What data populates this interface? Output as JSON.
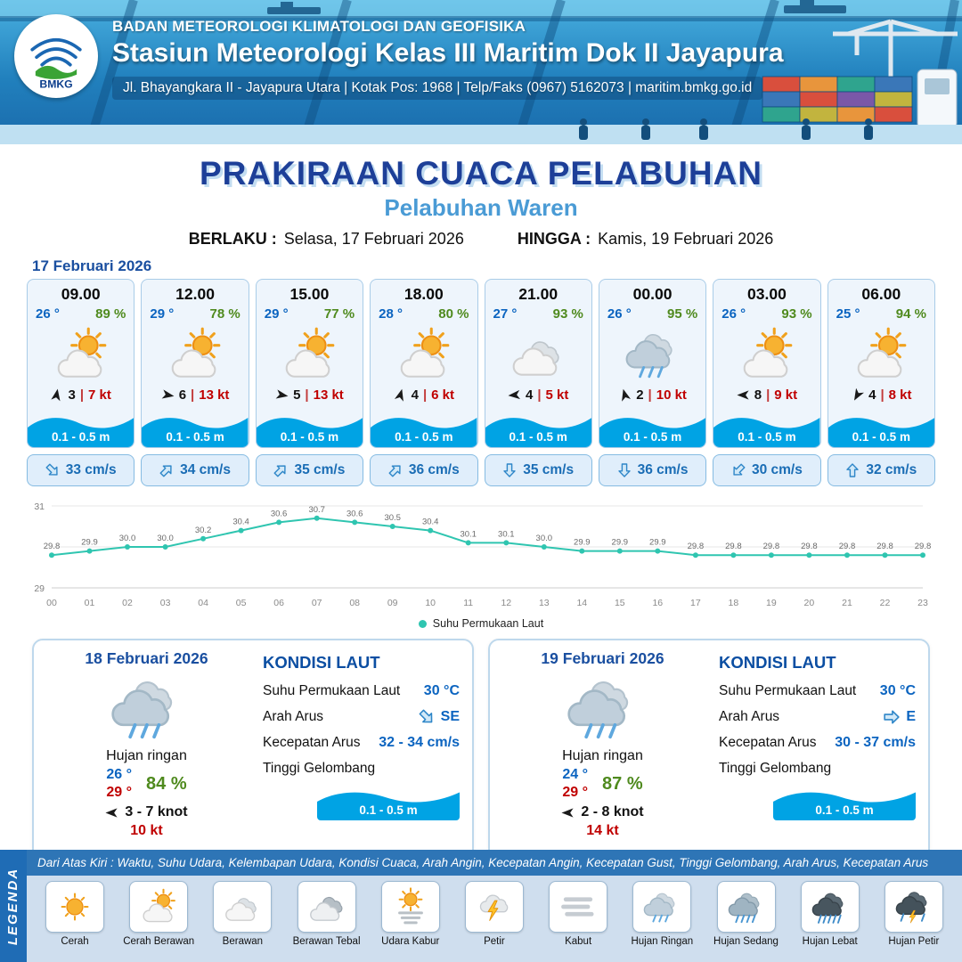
{
  "colors": {
    "header_blue": "#2180bd",
    "title_blue": "#1d3f98",
    "port_blue": "#4a9bd5",
    "temp_blue": "#0b64c0",
    "humidity_green": "#4f8a1e",
    "gust_red": "#c00000",
    "wave_blue": "#00a3e4",
    "sst_line_teal": "#2fc5b0",
    "legend_bar_blue": "#2e75b6"
  },
  "header": {
    "logo_text": "BMKG",
    "agency": "BADAN METEOROLOGI KLIMATOLOGI DAN GEOFISIKA",
    "station": "Stasiun Meteorologi Kelas III Maritim Dok II Jayapura",
    "address": "Jl. Bhayangkara II - Jayapura Utara | Kotak Pos: 1968 | Telp/Faks (0967) 5162073 | maritim.bmkg.go.id"
  },
  "title": {
    "main": "PRAKIRAAN CUACA PELABUHAN",
    "port": "Pelabuhan Waren",
    "valid_label": "BERLAKU :",
    "valid_value": "Selasa, 17 Februari 2026",
    "until_label": "HINGGA :",
    "until_value": "Kamis, 19 Februari 2026"
  },
  "forecast": {
    "date": "17 Februari 2026",
    "cards": [
      {
        "time": "09.00",
        "temp": "26 °",
        "humidity": "89 %",
        "icon": "cerah-berawan",
        "wind_dir_deg": 10,
        "wind_speed": "3",
        "gust": "7 kt",
        "wave": "0.1 - 0.5 m",
        "current_dir_deg": 135,
        "current_speed": "33 cm/s"
      },
      {
        "time": "12.00",
        "temp": "29 °",
        "humidity": "78 %",
        "icon": "cerah-berawan",
        "wind_dir_deg": 100,
        "wind_speed": "6",
        "gust": "13 kt",
        "wave": "0.1 - 0.5 m",
        "current_dir_deg": 45,
        "current_speed": "34 cm/s"
      },
      {
        "time": "15.00",
        "temp": "29 °",
        "humidity": "77 %",
        "icon": "cerah-berawan",
        "wind_dir_deg": 100,
        "wind_speed": "5",
        "gust": "13 kt",
        "wave": "0.1 - 0.5 m",
        "current_dir_deg": 45,
        "current_speed": "35 cm/s"
      },
      {
        "time": "18.00",
        "temp": "28 °",
        "humidity": "80 %",
        "icon": "cerah-berawan",
        "wind_dir_deg": 15,
        "wind_speed": "4",
        "gust": "6 kt",
        "wave": "0.1 - 0.5 m",
        "current_dir_deg": 45,
        "current_speed": "36 cm/s"
      },
      {
        "time": "21.00",
        "temp": "27 °",
        "humidity": "93 %",
        "icon": "berawan",
        "wind_dir_deg": 265,
        "wind_speed": "4",
        "gust": "5 kt",
        "wave": "0.1 - 0.5 m",
        "current_dir_deg": 180,
        "current_speed": "35 cm/s"
      },
      {
        "time": "00.00",
        "temp": "26 °",
        "humidity": "95 %",
        "icon": "hujan-ringan",
        "wind_dir_deg": 345,
        "wind_speed": "2",
        "gust": "10 kt",
        "wave": "0.1 - 0.5 m",
        "current_dir_deg": 180,
        "current_speed": "36 cm/s"
      },
      {
        "time": "03.00",
        "temp": "26 °",
        "humidity": "93 %",
        "icon": "cerah-berawan",
        "wind_dir_deg": 270,
        "wind_speed": "8",
        "gust": "9 kt",
        "wave": "0.1 - 0.5 m",
        "current_dir_deg": 225,
        "current_speed": "30 cm/s"
      },
      {
        "time": "06.00",
        "temp": "25 °",
        "humidity": "94 %",
        "icon": "cerah-berawan",
        "wind_dir_deg": 210,
        "wind_speed": "4",
        "gust": "8 kt",
        "wave": "0.1 - 0.5 m",
        "current_dir_deg": 0,
        "current_speed": "32 cm/s"
      }
    ]
  },
  "chart_data": {
    "type": "line",
    "title": "",
    "legend": "Suhu Permukaan Laut",
    "x": [
      "00",
      "01",
      "02",
      "03",
      "04",
      "05",
      "06",
      "07",
      "08",
      "09",
      "10",
      "11",
      "12",
      "13",
      "14",
      "15",
      "16",
      "17",
      "18",
      "19",
      "20",
      "21",
      "22",
      "23"
    ],
    "values": [
      29.8,
      29.9,
      30.0,
      30.0,
      30.2,
      30.4,
      30.6,
      30.7,
      30.6,
      30.5,
      30.4,
      30.1,
      30.1,
      30.0,
      29.9,
      29.9,
      29.9,
      29.8,
      29.8,
      29.8,
      29.8,
      29.8,
      29.8,
      29.8
    ],
    "ylim": [
      29,
      31
    ],
    "line_color": "#2fc5b0",
    "grid": true,
    "legend_position": "bottom"
  },
  "days": [
    {
      "date": "18 Februari 2026",
      "icon": "hujan-ringan",
      "condition": "Hujan ringan",
      "temp_min": "26 °",
      "temp_max": "29 °",
      "humidity": "84 %",
      "wind_dir_deg": 270,
      "wind_range": "3 - 7 knot",
      "gust": "10 kt",
      "sea": {
        "title": "KONDISI LAUT",
        "sst_label": "Suhu Permukaan Laut",
        "sst": "30 °C",
        "current_dir_label": "Arah Arus",
        "current_dir": "SE",
        "current_dir_deg": 135,
        "current_speed_label": "Kecepatan Arus",
        "current_speed": "32 - 34 cm/s",
        "wave_label": "Tinggi Gelombang",
        "wave": "0.1 - 0.5 m"
      }
    },
    {
      "date": "19 Februari 2026",
      "icon": "hujan-ringan",
      "condition": "Hujan ringan",
      "temp_min": "24 °",
      "temp_max": "29 °",
      "humidity": "87 %",
      "wind_dir_deg": 270,
      "wind_range": "2 - 8 knot",
      "gust": "14 kt",
      "sea": {
        "title": "KONDISI LAUT",
        "sst_label": "Suhu Permukaan Laut",
        "sst": "30 °C",
        "current_dir_label": "Arah Arus",
        "current_dir": "E",
        "current_dir_deg": 90,
        "current_speed_label": "Kecepatan Arus",
        "current_speed": "30 - 37 cm/s",
        "wave_label": "Tinggi Gelombang",
        "wave": "0.1 - 0.5 m"
      }
    }
  ],
  "legend": {
    "sidebar": "LEGENDA",
    "note": "Dari Atas Kiri : Waktu, Suhu Udara, Kelembapan Udara, Kondisi Cuaca, Arah Angin, Kecepatan Angin, Kecepatan Gust, Tinggi Gelombang, Arah Arus, Kecepatan Arus",
    "items": [
      {
        "label": "Cerah",
        "icon": "cerah"
      },
      {
        "label": "Cerah Berawan",
        "icon": "cerah-berawan"
      },
      {
        "label": "Berawan",
        "icon": "berawan"
      },
      {
        "label": "Berawan Tebal",
        "icon": "berawan-tebal"
      },
      {
        "label": "Udara Kabur",
        "icon": "udara-kabur"
      },
      {
        "label": "Petir",
        "icon": "petir"
      },
      {
        "label": "Kabut",
        "icon": "kabut"
      },
      {
        "label": "Hujan Ringan",
        "icon": "hujan-ringan"
      },
      {
        "label": "Hujan Sedang",
        "icon": "hujan-sedang"
      },
      {
        "label": "Hujan Lebat",
        "icon": "hujan-lebat"
      },
      {
        "label": "Hujan Petir",
        "icon": "hujan-petir"
      }
    ]
  }
}
